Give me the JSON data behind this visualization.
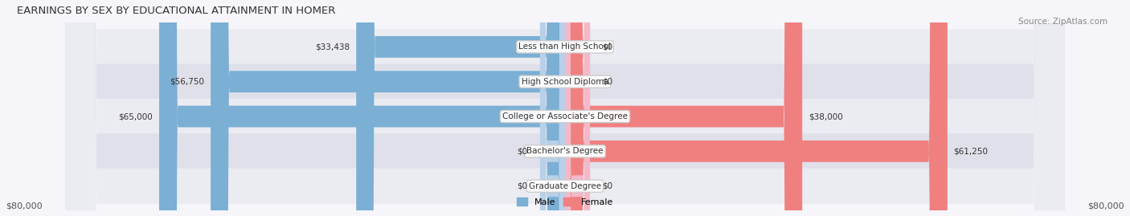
{
  "title": "EARNINGS BY SEX BY EDUCATIONAL ATTAINMENT IN HOMER",
  "source": "Source: ZipAtlas.com",
  "categories": [
    "Less than High School",
    "High School Diploma",
    "College or Associate's Degree",
    "Bachelor's Degree",
    "Graduate Degree"
  ],
  "male_values": [
    33438,
    56750,
    65000,
    0,
    0
  ],
  "female_values": [
    0,
    0,
    38000,
    61250,
    0
  ],
  "male_color": "#7bafd4",
  "female_color": "#f08080",
  "male_color_light": "#b8d0e8",
  "female_color_light": "#f5b8c8",
  "bar_bg_color": "#e8e8ee",
  "max_value": 80000,
  "xlabel_left": "$80,000",
  "xlabel_right": "$80,000",
  "title_fontsize": 10,
  "label_fontsize": 8,
  "tick_fontsize": 8,
  "bar_height": 0.62,
  "row_bg_colors": [
    "#f0f0f5",
    "#e8e8ef"
  ],
  "legend_male_label": "Male",
  "legend_female_label": "Female"
}
